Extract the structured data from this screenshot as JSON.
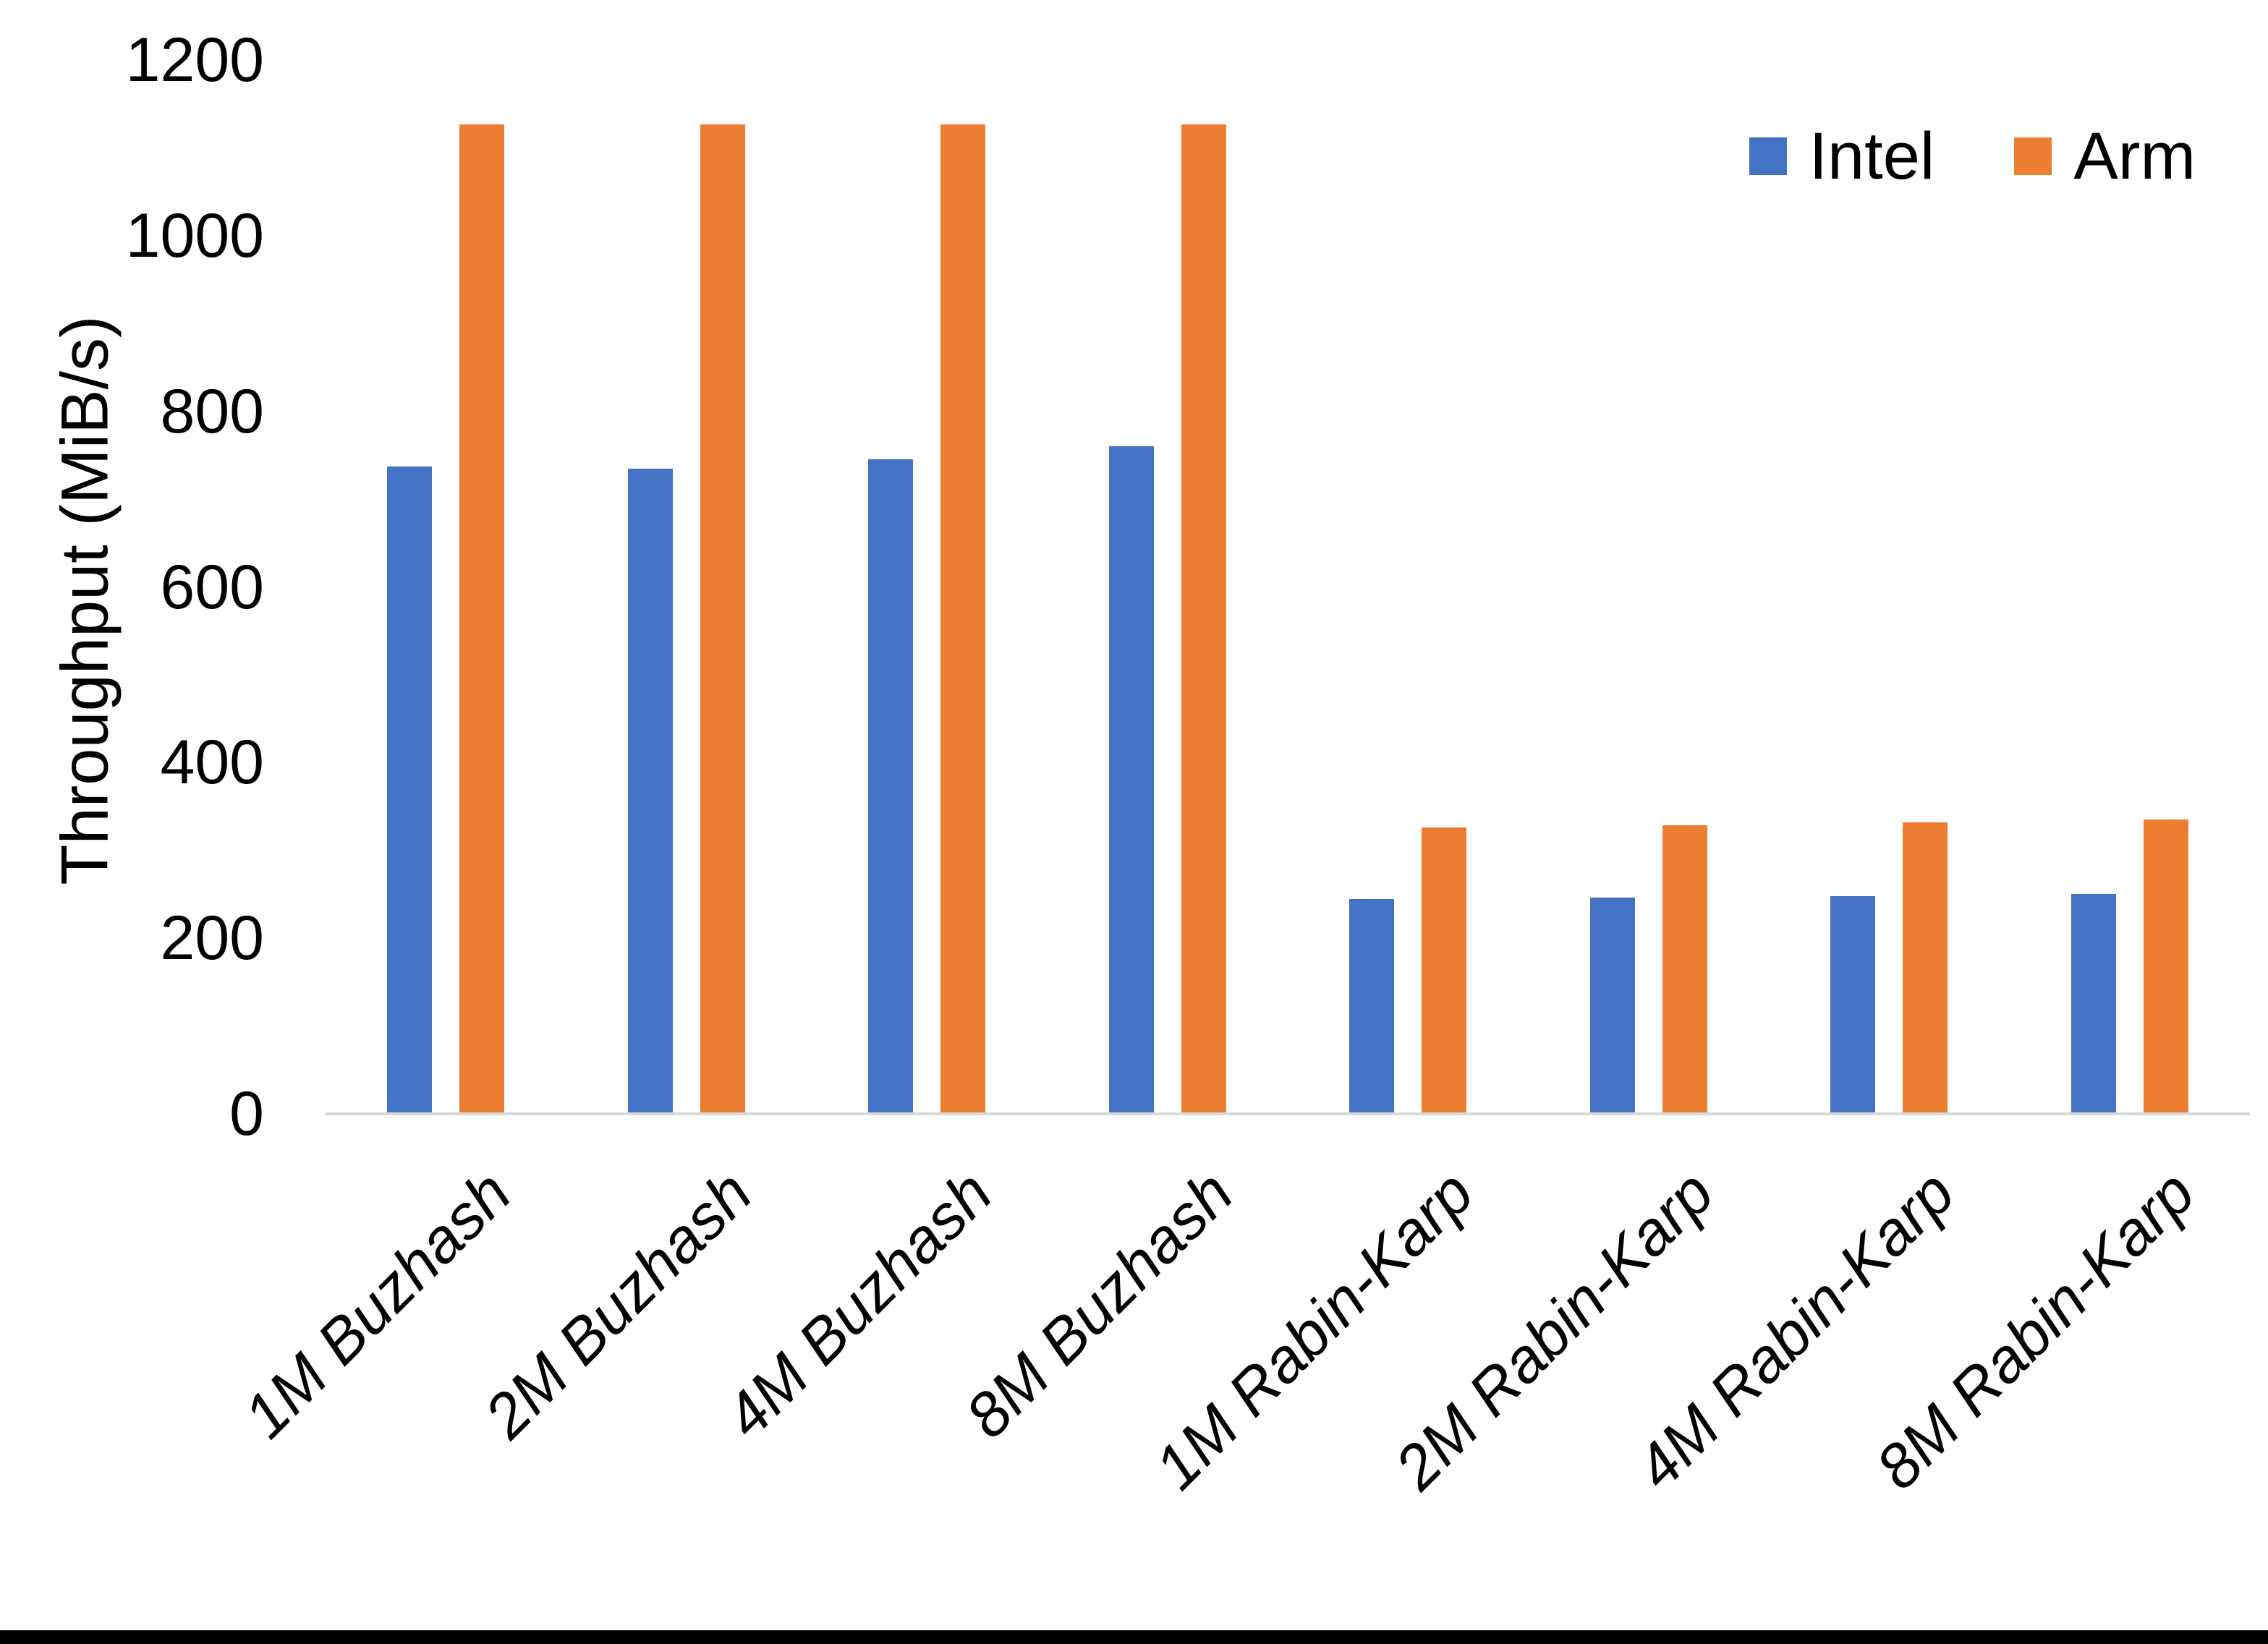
{
  "chart_data": {
    "type": "bar",
    "title": "",
    "ylabel": "Throughput (MiB/s)",
    "xlabel": "",
    "ylim": [
      0,
      1200
    ],
    "yticks": [
      0,
      200,
      400,
      600,
      800,
      1000,
      1200
    ],
    "grid": false,
    "legend_position": "top-right",
    "categories": [
      "1M Buzhash",
      "2M Buzhash",
      "4M Buzhash",
      "8M Buzhash",
      "1M Rabin-Karp",
      "2M Rabin-Karp",
      "4M Rabin-Karp",
      "8M Rabin-Karp"
    ],
    "series": [
      {
        "name": "Intel",
        "color": "#4472C4",
        "values": [
          737,
          735,
          745,
          760,
          245,
          246,
          248,
          250
        ]
      },
      {
        "name": "Arm",
        "color": "#ED7D31",
        "values": [
          1127,
          1127,
          1127,
          1127,
          326,
          329,
          332,
          335
        ]
      }
    ]
  },
  "colors": {
    "axis_line": "#d9d9d9",
    "text": "#000000",
    "bottom_border": "#000000"
  }
}
